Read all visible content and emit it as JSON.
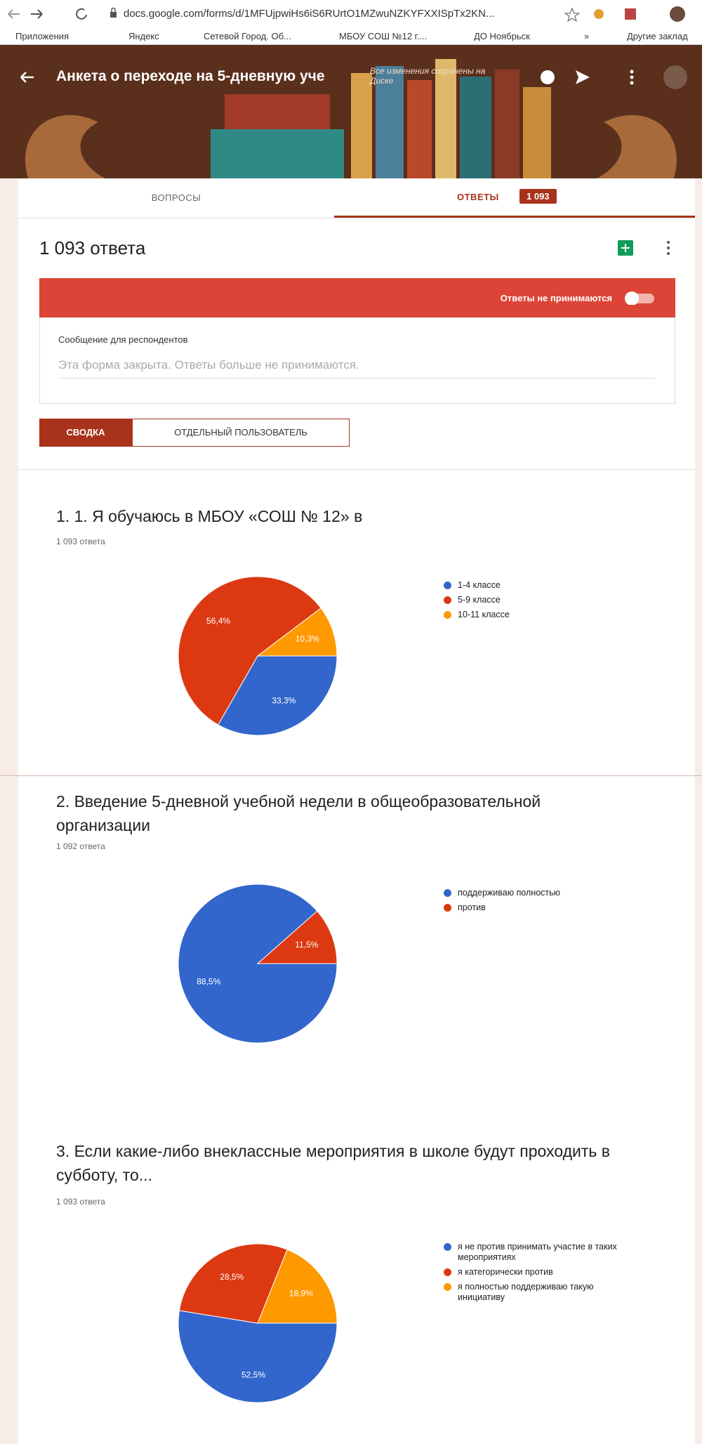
{
  "browser": {
    "url": "docs.google.com/forms/d/1MFUjpwiHs6iS6RUrtO1MZwuNZKYFXXISpTx2KN...",
    "bookmarks": [
      "Приложения",
      "Яндекс",
      "Сетевой Город. Об...",
      "МБОУ СОШ №12 г....",
      "ДО Ноябрьск",
      "»",
      "Другие заклад"
    ]
  },
  "header": {
    "title": "Анкета о переходе на 5-дневную уче",
    "saved": "Все изменения сохранены на Диске"
  },
  "tabs": {
    "questions": "ВОПРОСЫ",
    "answers": "ОТВЕТЫ",
    "answers_count": "1 093"
  },
  "responses": {
    "count_title": "1 093 ответа",
    "not_accepting": "Ответы не принимаются",
    "message_label": "Сообщение для респондентов",
    "message_text": "Эта форма закрыта. Ответы больше не принимаются.",
    "view_summary": "СВОДКА",
    "view_individual": "ОТДЕЛЬНЫЙ ПОЛЬЗОВАТЕЛЬ"
  },
  "chart_data": [
    {
      "type": "pie",
      "title": "1. 1. Я обучаюсь в МБОУ «СОШ № 12» в",
      "subtitle": "1 093 ответа",
      "categories": [
        "1-4 классе",
        "5-9 классе",
        "10-11 классе"
      ],
      "values": [
        33.3,
        56.4,
        10.3
      ],
      "value_labels": [
        "33,3%",
        "56,4%",
        "10,3%"
      ],
      "colors": [
        "#3366cc",
        "#dc3912",
        "#ff9900"
      ]
    },
    {
      "type": "pie",
      "title": "2. Введение 5-дневной учебной недели в общеобразовательной организации",
      "subtitle": "1 092 ответа",
      "categories": [
        "поддерживаю полностью",
        "против"
      ],
      "values": [
        88.5,
        11.5
      ],
      "value_labels": [
        "88,5%",
        "11,5%"
      ],
      "colors": [
        "#3366cc",
        "#dc3912"
      ]
    },
    {
      "type": "pie",
      "title": "3. Если какие-либо внеклассные мероприятия в школе будут проходить в субботу, то...",
      "subtitle": "1 093 ответа",
      "categories": [
        "я не против принимать участие в таких мероприятиях",
        "я категорически против",
        "я полностью поддерживаю такую инициативу"
      ],
      "values": [
        52.5,
        28.5,
        18.9
      ],
      "value_labels": [
        "52,5%",
        "28,5%",
        "18,9%"
      ],
      "colors": [
        "#3366cc",
        "#dc3912",
        "#ff9900"
      ]
    }
  ]
}
